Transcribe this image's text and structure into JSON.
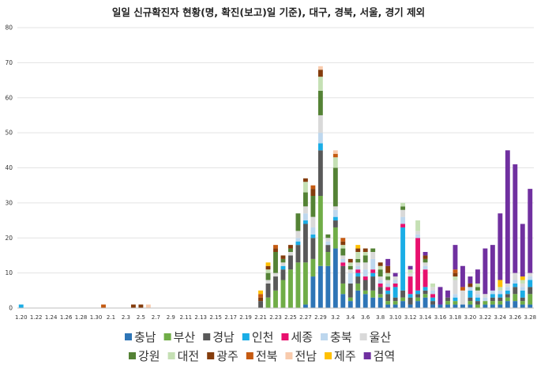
{
  "chart_data": {
    "type": "bar",
    "stacked": true,
    "title": "일일 신규확진자 현황(명, 확진(보고)일 기준), 대구, 경북, 서울, 경기 제외",
    "xlabel": "",
    "ylabel": "",
    "ylim": [
      0,
      80
    ],
    "yticks": [
      0,
      10,
      20,
      30,
      40,
      50,
      60,
      70,
      80
    ],
    "grid": true,
    "legend_position": "bottom",
    "categories": [
      "1.20",
      "1.21",
      "1.22",
      "1.23",
      "1.24",
      "1.25",
      "1.26",
      "1.27",
      "1.28",
      "1.29",
      "1.30",
      "1.31",
      "2.1",
      "2.2",
      "2.3",
      "2.4",
      "2.5",
      "2.6",
      "2.7",
      "2.8",
      "2.9",
      "2.10",
      "2.11",
      "2.12",
      "2.13",
      "2.14",
      "2.15",
      "2.16",
      "2.17",
      "2.18",
      "2.19",
      "2.20",
      "2.21",
      "2.22",
      "2.23",
      "2.24",
      "2.25",
      "2.26",
      "2.27",
      "2.28",
      "2.29",
      "3.1",
      "3.2",
      "3.3",
      "3.4",
      "3.5",
      "3.6",
      "3.7",
      "3.8",
      "3.9",
      "3.10",
      "3.11",
      "3.12",
      "3.13",
      "3.14",
      "3.15",
      "3.16",
      "3.17",
      "3.18",
      "3.19",
      "3.20",
      "3.21",
      "3.22",
      "3.23",
      "3.24",
      "3.25",
      "3.26",
      "3.27",
      "3.28"
    ],
    "xtick_labels": [
      "1.20",
      "1.22",
      "1.24",
      "1.26",
      "1.28",
      "1.30",
      "2.1",
      "2.3",
      "2.5",
      "2.7",
      "2.9",
      "2.11",
      "2.13",
      "2.15",
      "2.17",
      "2.19",
      "2.21",
      "2.23",
      "2.25",
      "2.27",
      "2.29",
      "3.2",
      "3.4",
      "3.6",
      "3.8",
      "3.10",
      "3.12",
      "3.14",
      "3.16",
      "3.18",
      "3.20",
      "3.22",
      "3.24",
      "3.26",
      "3.28"
    ],
    "series": [
      {
        "name": "충남",
        "color": "#2E75B6",
        "values": [
          0,
          0,
          0,
          0,
          0,
          0,
          0,
          0,
          0,
          0,
          0,
          0,
          0,
          0,
          0,
          0,
          0,
          0,
          0,
          0,
          0,
          0,
          0,
          0,
          0,
          0,
          0,
          0,
          0,
          0,
          0,
          0,
          0,
          0,
          0,
          0,
          0,
          0,
          1,
          9,
          12,
          12,
          17,
          4,
          2,
          5,
          4,
          3,
          3,
          1,
          1,
          2,
          1,
          2,
          3,
          1,
          1,
          1,
          1,
          1,
          1,
          0,
          1,
          1,
          1,
          2,
          2,
          1,
          1
        ]
      },
      {
        "name": "부산",
        "color": "#70AD47",
        "values": [
          0,
          0,
          0,
          0,
          0,
          0,
          0,
          0,
          0,
          0,
          0,
          0,
          0,
          0,
          0,
          0,
          0,
          0,
          0,
          0,
          0,
          0,
          0,
          0,
          0,
          0,
          0,
          0,
          0,
          0,
          0,
          0,
          0,
          3,
          5,
          8,
          11,
          13,
          12,
          5,
          20,
          4,
          6,
          3,
          1,
          2,
          1,
          2,
          1,
          1,
          1,
          1,
          0,
          1,
          1,
          0,
          0,
          1,
          1,
          0,
          1,
          1,
          1,
          1,
          1,
          1,
          2,
          1,
          3
        ]
      },
      {
        "name": "경남",
        "color": "#595959",
        "values": [
          0,
          0,
          0,
          0,
          0,
          0,
          0,
          0,
          0,
          0,
          0,
          0,
          0,
          0,
          0,
          0,
          0,
          0,
          0,
          0,
          0,
          0,
          0,
          0,
          0,
          0,
          0,
          0,
          0,
          0,
          0,
          0,
          2,
          4,
          4,
          3,
          4,
          5,
          11,
          6,
          13,
          2,
          2,
          5,
          4,
          2,
          3,
          4,
          2,
          2,
          1,
          2,
          2,
          1,
          1,
          1,
          0,
          1,
          0,
          0,
          1,
          1,
          0,
          1,
          1,
          1,
          2,
          1,
          2
        ]
      },
      {
        "name": "인천",
        "color": "#1AADE6",
        "values": [
          1,
          0,
          0,
          0,
          0,
          0,
          0,
          0,
          0,
          0,
          0,
          0,
          0,
          0,
          0,
          0,
          0,
          0,
          0,
          0,
          0,
          0,
          0,
          0,
          0,
          0,
          0,
          0,
          0,
          0,
          0,
          0,
          0,
          0,
          0,
          1,
          0,
          1,
          1,
          1,
          2,
          0,
          1,
          0,
          0,
          1,
          0,
          1,
          0,
          1,
          3,
          18,
          1,
          1,
          1,
          1,
          0,
          0,
          1,
          0,
          2,
          1,
          0,
          1,
          1,
          1,
          1,
          2,
          2
        ]
      },
      {
        "name": "세종",
        "color": "#E8106E",
        "values": [
          0,
          0,
          0,
          0,
          0,
          0,
          0,
          0,
          0,
          0,
          0,
          0,
          0,
          0,
          0,
          0,
          0,
          0,
          0,
          0,
          0,
          0,
          0,
          0,
          0,
          0,
          0,
          0,
          0,
          0,
          0,
          0,
          0,
          0,
          0,
          0,
          0,
          0,
          0,
          0,
          0,
          0,
          0,
          1,
          0,
          1,
          1,
          1,
          1,
          1,
          1,
          1,
          5,
          15,
          5,
          1,
          0,
          0,
          0,
          0,
          0,
          0,
          0,
          0,
          0,
          0,
          0,
          0,
          0
        ]
      },
      {
        "name": "충북",
        "color": "#BDD7EE",
        "values": [
          0,
          0,
          0,
          0,
          0,
          0,
          0,
          0,
          0,
          0,
          0,
          0,
          0,
          0,
          0,
          0,
          0,
          0,
          0,
          0,
          0,
          0,
          0,
          0,
          0,
          0,
          0,
          0,
          0,
          0,
          0,
          0,
          0,
          0,
          0,
          0,
          0,
          1,
          2,
          2,
          3,
          1,
          2,
          1,
          3,
          1,
          2,
          3,
          1,
          1,
          1,
          2,
          0,
          1,
          1,
          1,
          0,
          0,
          1,
          0,
          1,
          1,
          1,
          1,
          1,
          1,
          1,
          1,
          1
        ]
      },
      {
        "name": "울산",
        "color": "#D9D9D9",
        "values": [
          0,
          0,
          0,
          0,
          0,
          0,
          0,
          0,
          0,
          0,
          0,
          0,
          0,
          0,
          0,
          0,
          0,
          0,
          0,
          0,
          0,
          0,
          0,
          0,
          0,
          0,
          0,
          0,
          0,
          0,
          0,
          0,
          0,
          1,
          1,
          1,
          1,
          2,
          2,
          3,
          5,
          1,
          1,
          1,
          1,
          1,
          2,
          2,
          1,
          1,
          1,
          2,
          1,
          1,
          1,
          1,
          0,
          0,
          4,
          4,
          0,
          1,
          1,
          0,
          0,
          1,
          2,
          1,
          1
        ]
      },
      {
        "name": "강원",
        "color": "#548235",
        "values": [
          0,
          0,
          0,
          0,
          0,
          0,
          0,
          0,
          0,
          0,
          0,
          0,
          0,
          0,
          0,
          0,
          0,
          0,
          0,
          0,
          0,
          0,
          0,
          0,
          0,
          0,
          0,
          0,
          0,
          0,
          0,
          0,
          0,
          2,
          6,
          1,
          1,
          5,
          4,
          6,
          7,
          1,
          11,
          2,
          1,
          1,
          2,
          1,
          2,
          1,
          0,
          1,
          0,
          0,
          1,
          0,
          0,
          0,
          0,
          0,
          0,
          1,
          0,
          0,
          0,
          0,
          0,
          0,
          0
        ]
      },
      {
        "name": "대전",
        "color": "#C5E0B4",
        "values": [
          0,
          0,
          0,
          0,
          0,
          0,
          0,
          0,
          0,
          0,
          0,
          0,
          0,
          0,
          0,
          0,
          0,
          0,
          0,
          0,
          0,
          0,
          0,
          0,
          0,
          0,
          0,
          0,
          0,
          0,
          0,
          0,
          0,
          1,
          0,
          0,
          0,
          0,
          3,
          0,
          4,
          0,
          3,
          1,
          1,
          2,
          1,
          0,
          1,
          1,
          0,
          1,
          1,
          3,
          0,
          1,
          0,
          0,
          1,
          0,
          0,
          1,
          0,
          0,
          1,
          0,
          0,
          1,
          0
        ]
      },
      {
        "name": "광주",
        "color": "#843C0C",
        "values": [
          0,
          0,
          0,
          0,
          0,
          0,
          0,
          0,
          0,
          0,
          0,
          0,
          0,
          0,
          0,
          1,
          1,
          0,
          0,
          0,
          0,
          0,
          0,
          0,
          0,
          0,
          0,
          0,
          0,
          0,
          0,
          0,
          1,
          1,
          1,
          1,
          1,
          0,
          1,
          2,
          2,
          0,
          0,
          1,
          1,
          1,
          1,
          0,
          1,
          2,
          0,
          0,
          0,
          0,
          1,
          0,
          0,
          0,
          1,
          0,
          1,
          0,
          0,
          0,
          0,
          0,
          0,
          0,
          0
        ]
      },
      {
        "name": "전북",
        "color": "#C55A11",
        "values": [
          0,
          0,
          0,
          0,
          0,
          0,
          0,
          0,
          0,
          0,
          0,
          1,
          0,
          0,
          0,
          0,
          0,
          0,
          0,
          0,
          0,
          0,
          0,
          0,
          0,
          0,
          0,
          0,
          0,
          0,
          0,
          0,
          1,
          0,
          1,
          0,
          0,
          0,
          0,
          1,
          0,
          0,
          1,
          1,
          0,
          0,
          0,
          0,
          0,
          0,
          0,
          0,
          0,
          0,
          0,
          0,
          0,
          0,
          1,
          1,
          0,
          0,
          0,
          0,
          0,
          0,
          0,
          0,
          0
        ]
      },
      {
        "name": "전남",
        "color": "#F8CBAD",
        "values": [
          0,
          0,
          0,
          0,
          0,
          0,
          0,
          0,
          0,
          0,
          0,
          0,
          0,
          0,
          0,
          0,
          0,
          1,
          0,
          0,
          0,
          0,
          0,
          0,
          0,
          0,
          0,
          0,
          0,
          0,
          0,
          0,
          0,
          0,
          0,
          0,
          0,
          0,
          0,
          0,
          1,
          0,
          1,
          0,
          0,
          0,
          0,
          0,
          0,
          0,
          0,
          0,
          0,
          0,
          0,
          0,
          0,
          0,
          0,
          0,
          0,
          0,
          0,
          0,
          0,
          0,
          0,
          0,
          0
        ]
      },
      {
        "name": "제주",
        "color": "#FFC000",
        "values": [
          0,
          0,
          0,
          0,
          0,
          0,
          0,
          0,
          0,
          0,
          0,
          0,
          0,
          0,
          0,
          0,
          0,
          0,
          0,
          0,
          0,
          0,
          0,
          0,
          0,
          0,
          0,
          0,
          0,
          0,
          0,
          0,
          1,
          1,
          0,
          0,
          0,
          0,
          0,
          0,
          0,
          0,
          0,
          0,
          0,
          1,
          0,
          0,
          0,
          0,
          0,
          0,
          0,
          0,
          0,
          0,
          0,
          0,
          0,
          0,
          0,
          0,
          0,
          0,
          2,
          0,
          0,
          1,
          0
        ]
      },
      {
        "name": "검역",
        "color": "#7030A0",
        "values": [
          0,
          0,
          0,
          0,
          0,
          0,
          0,
          0,
          0,
          0,
          0,
          0,
          0,
          0,
          0,
          0,
          0,
          0,
          0,
          0,
          0,
          0,
          0,
          0,
          0,
          0,
          0,
          0,
          0,
          0,
          0,
          0,
          0,
          0,
          0,
          0,
          0,
          0,
          0,
          0,
          0,
          0,
          0,
          0,
          0,
          0,
          0,
          0,
          0,
          2,
          1,
          0,
          1,
          0,
          1,
          0,
          5,
          2,
          7,
          6,
          2,
          4,
          13,
          13,
          19,
          38,
          31,
          15,
          24
        ]
      }
    ]
  }
}
